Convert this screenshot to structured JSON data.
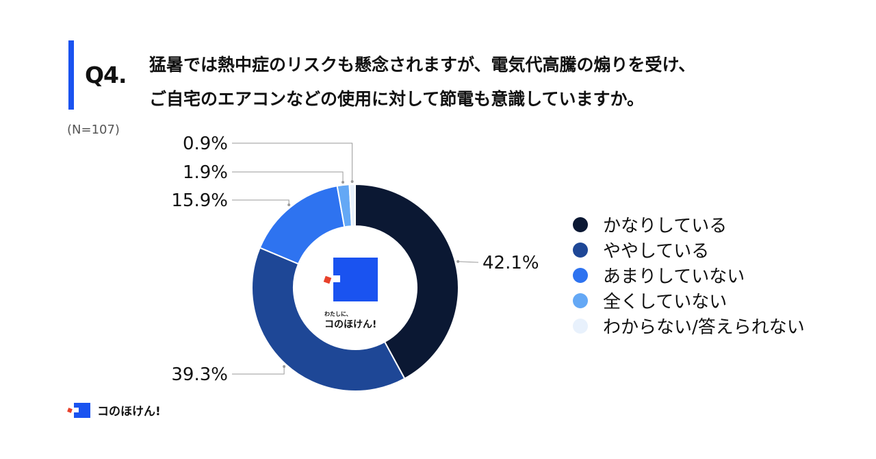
{
  "question": {
    "number": "Q4.",
    "line1": "猛暑では熱中症のリスクも懸念されますが、電気代高騰の煽りを受け、",
    "line2": "ご自宅のエアコンなどの使用に対して節電も意識していますか。"
  },
  "sample_size": "(N=107)",
  "center_logo": {
    "tagline": "わたしに、",
    "name": "コのほけん!"
  },
  "footer": {
    "brand": "コのほけん!"
  },
  "chart_data": {
    "type": "pie",
    "donut": true,
    "categories": [
      "かなりしている",
      "ややしている",
      "あまりしていない",
      "全くしていない",
      "わからない/答えられない"
    ],
    "values": [
      42.1,
      39.3,
      15.9,
      1.9,
      0.9
    ],
    "value_labels": [
      "42.1%",
      "39.3%",
      "15.9%",
      "1.9%",
      "0.9%"
    ],
    "colors": [
      "#0b1833",
      "#1e4796",
      "#2e73f0",
      "#64a8f5",
      "#e8f1fc"
    ],
    "legend_position": "right"
  }
}
